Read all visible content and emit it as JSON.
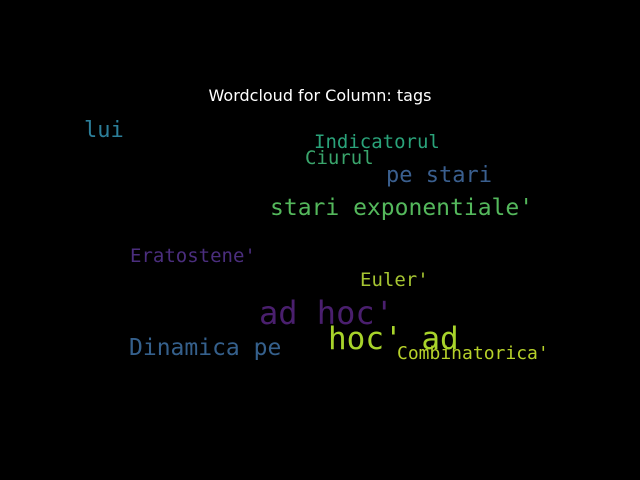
{
  "chart_data": {
    "type": "wordcloud",
    "title": "Wordcloud for Column: tags",
    "words": [
      {
        "text": "lui",
        "weight": 0.55,
        "color": "#2c7f9a"
      },
      {
        "text": "Indicatorul",
        "weight": 0.42,
        "color": "#2aa37a"
      },
      {
        "text": "Ciurul",
        "weight": 0.42,
        "color": "#3aa56c"
      },
      {
        "text": "pe stari",
        "weight": 0.55,
        "color": "#3a5f8f"
      },
      {
        "text": "stari exponentiale'",
        "weight": 0.57,
        "color": "#54b85c"
      },
      {
        "text": "Eratostene'",
        "weight": 0.42,
        "color": "#4b2e7e"
      },
      {
        "text": "Euler'",
        "weight": 0.42,
        "color": "#a6c532"
      },
      {
        "text": "ad hoc'",
        "weight": 1.0,
        "color": "#4a1f6e"
      },
      {
        "text": "hoc' ad",
        "weight": 0.95,
        "color": "#a8d42b"
      },
      {
        "text": "Dinamica pe",
        "weight": 0.6,
        "color": "#35608c"
      },
      {
        "text": "Combinatorica'",
        "weight": 0.35,
        "color": "#b7d12a"
      }
    ]
  }
}
